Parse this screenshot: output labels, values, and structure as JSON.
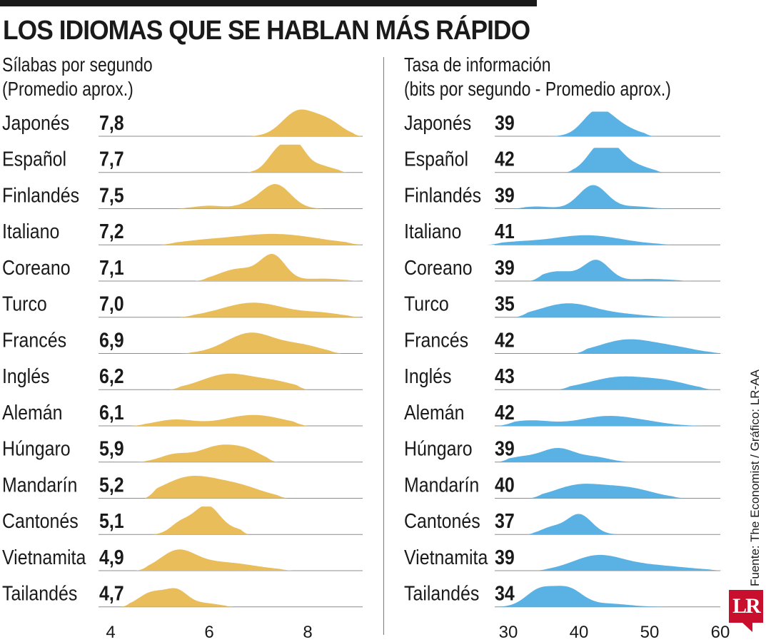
{
  "title": "LOS IDIOMAS QUE SE HABLAN MÁS RÁPIDO",
  "source": "Fuente: The Economist / Gráfico: LR-AA",
  "logo": "LR",
  "colors": {
    "left": "#e8bd5a",
    "right": "#5ab1e3"
  },
  "chart_data": [
    {
      "type": "area",
      "subtype": "ridgeline",
      "subtitle": [
        "Sílabas por segundo",
        "(Promedio aprox.)"
      ],
      "xlim": [
        4,
        9.2
      ],
      "xticks": [
        4,
        6,
        8
      ],
      "tick_labels": [
        "4",
        "6",
        "8"
      ],
      "series": [
        {
          "name": "Japonés",
          "label": "7,8",
          "value": 7.8,
          "range": [
            6.8,
            9.1
          ],
          "peaks": [
            [
              7.8,
              0.32,
              1.0
            ],
            [
              8.4,
              0.3,
              0.6
            ]
          ]
        },
        {
          "name": "Español",
          "label": "7,7",
          "value": 7.7,
          "range": [
            6.7,
            8.8
          ],
          "peaks": [
            [
              7.4,
              0.22,
              0.85
            ],
            [
              7.75,
              0.2,
              1.0
            ],
            [
              8.2,
              0.3,
              0.3
            ]
          ]
        },
        {
          "name": "Finlandés",
          "label": "7,5",
          "value": 7.5,
          "range": [
            5.3,
            8.4
          ],
          "peaks": [
            [
              7.35,
              0.3,
              1.0
            ],
            [
              6.0,
              0.3,
              0.12
            ],
            [
              6.8,
              0.25,
              0.15
            ]
          ]
        },
        {
          "name": "Italiano",
          "label": "7,2",
          "value": 7.2,
          "range": [
            5.0,
            9.1
          ],
          "peaks": [
            [
              7.3,
              0.9,
              0.45
            ],
            [
              5.8,
              0.5,
              0.1
            ]
          ]
        },
        {
          "name": "Coreano",
          "label": "7,1",
          "value": 7.1,
          "range": [
            5.7,
            9.1
          ],
          "peaks": [
            [
              7.3,
              0.25,
              1.0
            ],
            [
              6.6,
              0.4,
              0.5
            ],
            [
              8.3,
              0.4,
              0.1
            ]
          ]
        },
        {
          "name": "Turco",
          "label": "7,0",
          "value": 7.0,
          "range": [
            5.4,
            9.1
          ],
          "peaks": [
            [
              6.9,
              0.65,
              0.6
            ],
            [
              8.3,
              0.4,
              0.15
            ]
          ]
        },
        {
          "name": "Francés",
          "label": "6,9",
          "value": 6.9,
          "range": [
            5.4,
            8.7
          ],
          "peaks": [
            [
              6.85,
              0.5,
              0.85
            ],
            [
              7.9,
              0.4,
              0.3
            ]
          ]
        },
        {
          "name": "Inglés",
          "label": "6,2",
          "value": 6.2,
          "range": [
            5.2,
            8.0
          ],
          "peaks": [
            [
              6.4,
              0.55,
              0.65
            ],
            [
              7.4,
              0.4,
              0.25
            ]
          ]
        },
        {
          "name": "Alemán",
          "label": "6,1",
          "value": 6.1,
          "range": [
            4.4,
            8.0
          ],
          "peaks": [
            [
              5.3,
              0.4,
              0.25
            ],
            [
              6.9,
              0.6,
              0.45
            ]
          ]
        },
        {
          "name": "Húngaro",
          "label": "5,9",
          "value": 5.9,
          "range": [
            4.5,
            7.4
          ],
          "peaks": [
            [
              6.2,
              0.4,
              0.65
            ],
            [
              5.3,
              0.3,
              0.3
            ],
            [
              6.8,
              0.3,
              0.35
            ]
          ]
        },
        {
          "name": "Mandarín",
          "label": "5,2",
          "value": 5.2,
          "range": [
            4.7,
            7.6
          ],
          "peaks": [
            [
              5.6,
              0.55,
              0.85
            ],
            [
              6.6,
              0.5,
              0.45
            ]
          ]
        },
        {
          "name": "Cantonés",
          "label": "5,1",
          "value": 5.1,
          "range": [
            4.8,
            6.8
          ],
          "peaks": [
            [
              5.95,
              0.28,
              1.2
            ],
            [
              5.4,
              0.2,
              0.4
            ],
            [
              6.6,
              0.2,
              0.15
            ]
          ]
        },
        {
          "name": "Vietnamita",
          "label": "4,9",
          "value": 4.9,
          "range": [
            4.5,
            7.7
          ],
          "peaks": [
            [
              5.35,
              0.35,
              0.7
            ],
            [
              6.2,
              0.7,
              0.35
            ]
          ]
        },
        {
          "name": "Tailandés",
          "label": "4,7",
          "value": 4.7,
          "range": [
            4.2,
            6.5
          ],
          "peaks": [
            [
              4.85,
              0.28,
              0.6
            ],
            [
              5.35,
              0.22,
              0.6
            ],
            [
              5.9,
              0.3,
              0.15
            ]
          ]
        }
      ]
    },
    {
      "type": "area",
      "subtype": "ridgeline",
      "subtitle": [
        "Tasa de información",
        "(bits por segundo - Promedio aprox.)"
      ],
      "xlim": [
        26,
        61
      ],
      "xticks": [
        30,
        40,
        50,
        60
      ],
      "tick_labels": [
        "30",
        "40",
        "50",
        "60"
      ],
      "series": [
        {
          "name": "Japonés",
          "label": "39",
          "value": 39,
          "range": [
            36,
            50.5
          ],
          "peaks": [
            [
              42.5,
              2.0,
              1.05
            ],
            [
              45.5,
              2.5,
              0.45
            ]
          ]
        },
        {
          "name": "Español",
          "label": "42",
          "value": 42,
          "range": [
            38,
            52
          ],
          "peaks": [
            [
              42.5,
              1.8,
              0.75
            ],
            [
              44.5,
              1.8,
              1.0
            ],
            [
              48,
              2.0,
              0.3
            ]
          ]
        },
        {
          "name": "Finlandés",
          "label": "39",
          "value": 39,
          "range": [
            30.5,
            55
          ],
          "peaks": [
            [
              42,
              2.0,
              1.1
            ],
            [
              34,
              2.0,
              0.1
            ],
            [
              48,
              2.0,
              0.1
            ]
          ]
        },
        {
          "name": "Italiano",
          "label": "41",
          "value": 41,
          "range": [
            27,
            53.5
          ],
          "peaks": [
            [
              41,
              5.0,
              0.45
            ],
            [
              31,
              3.0,
              0.1
            ]
          ]
        },
        {
          "name": "Coreano",
          "label": "39",
          "value": 39,
          "range": [
            33,
            56
          ],
          "peaks": [
            [
              42.5,
              1.8,
              0.95
            ],
            [
              37,
              2.5,
              0.45
            ],
            [
              50,
              3.0,
              0.1
            ]
          ]
        },
        {
          "name": "Turco",
          "label": "35",
          "value": 35,
          "range": [
            31,
            53.5
          ],
          "peaks": [
            [
              38.5,
              4.0,
              0.65
            ],
            [
              47,
              3.0,
              0.1
            ]
          ]
        },
        {
          "name": "Francés",
          "label": "42",
          "value": 42,
          "range": [
            39.5,
            60.5
          ],
          "peaks": [
            [
              47,
              4.0,
              0.65
            ],
            [
              54,
              3.0,
              0.2
            ]
          ]
        },
        {
          "name": "Inglés",
          "label": "43",
          "value": 43,
          "range": [
            37,
            59
          ],
          "peaks": [
            [
              46,
              4.5,
              0.6
            ],
            [
              53,
              3.0,
              0.25
            ]
          ]
        },
        {
          "name": "Alemán",
          "label": "42",
          "value": 42,
          "range": [
            28.5,
            58.5
          ],
          "peaks": [
            [
              44,
              4.0,
              0.45
            ],
            [
              33,
              3.0,
              0.25
            ],
            [
              50,
              3.0,
              0.1
            ]
          ]
        },
        {
          "name": "Húngaro",
          "label": "39",
          "value": 39,
          "range": [
            28.5,
            48
          ],
          "peaks": [
            [
              37,
              2.5,
              0.65
            ],
            [
              31.5,
              2.0,
              0.2
            ],
            [
              42.5,
              2.0,
              0.2
            ]
          ]
        },
        {
          "name": "Mandarín",
          "label": "40",
          "value": 40,
          "range": [
            33,
            55
          ],
          "peaks": [
            [
              40,
              3.5,
              0.6
            ],
            [
              47,
              3.5,
              0.45
            ]
          ]
        },
        {
          "name": "Cantonés",
          "label": "37",
          "value": 37,
          "range": [
            32.5,
            46.5
          ],
          "peaks": [
            [
              40,
              1.8,
              0.95
            ],
            [
              36,
              1.5,
              0.3
            ]
          ]
        },
        {
          "name": "Vietnamita",
          "label": "39",
          "value": 39,
          "range": [
            33.5,
            60.5
          ],
          "peaks": [
            [
              42.5,
              3.5,
              0.65
            ],
            [
              50,
              5.0,
              0.25
            ]
          ]
        },
        {
          "name": "Tailandés",
          "label": "34",
          "value": 34,
          "range": [
            27,
            60.5
          ],
          "peaks": [
            [
              34.5,
              2.0,
              0.8
            ],
            [
              38.5,
              2.0,
              0.8
            ],
            [
              44,
              3.0,
              0.15
            ]
          ]
        }
      ]
    }
  ]
}
